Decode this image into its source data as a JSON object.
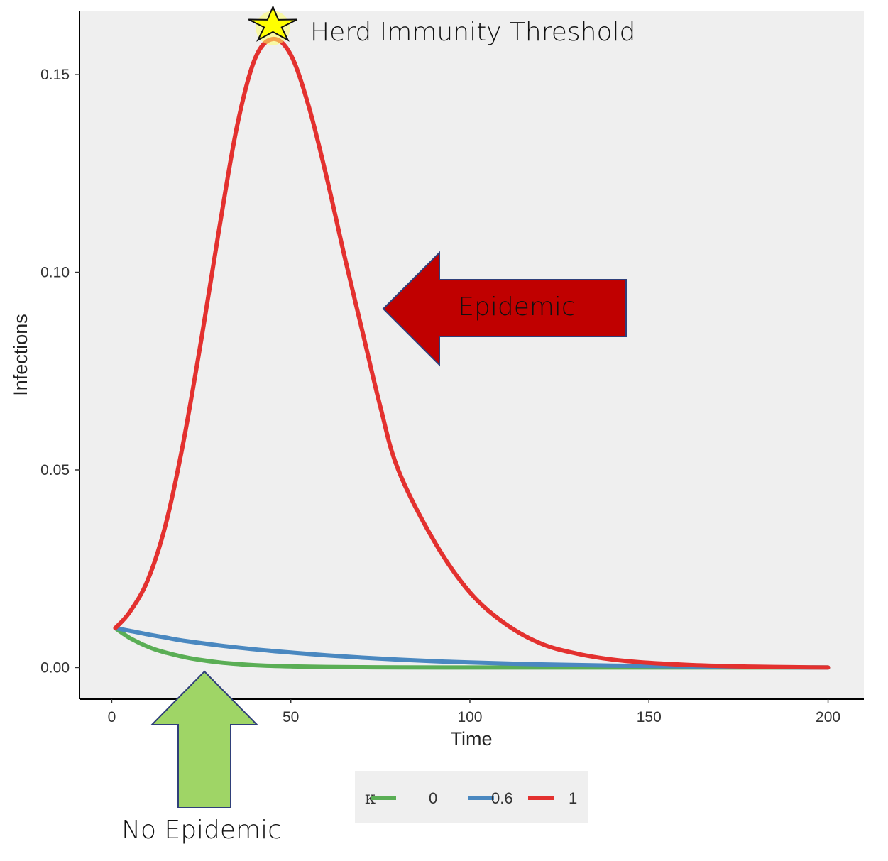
{
  "chart_data": {
    "type": "line",
    "xlabel": "Time",
    "ylabel": "Infections",
    "xlim": [
      -9,
      210
    ],
    "ylim": [
      -0.008,
      0.166
    ],
    "x_ticks": [
      0,
      50,
      100,
      150,
      200
    ],
    "x_tick_labels": [
      "0",
      "50",
      "100",
      "150",
      "200"
    ],
    "y_ticks": [
      0,
      0.05,
      0.1,
      0.15
    ],
    "y_tick_labels": [
      "0.00",
      "0.05",
      "0.10",
      "0.15"
    ],
    "grid": false,
    "legend": {
      "title": "κ",
      "placement": "bottom"
    },
    "series": [
      {
        "name": "0",
        "color": "#5aae55",
        "x": [
          1,
          3,
          5,
          8,
          10,
          12,
          15,
          20,
          25,
          30,
          35,
          40,
          50,
          60,
          70,
          80,
          100,
          120,
          150,
          180,
          200
        ],
        "y": [
          0.01,
          0.0087,
          0.0075,
          0.0061,
          0.0053,
          0.0046,
          0.0038,
          0.0027,
          0.0019,
          0.0013,
          0.0009,
          0.0006,
          0.0003,
          0.00015,
          8e-05,
          4e-05,
          1e-05,
          0.0,
          0.0,
          0.0,
          0.0
        ]
      },
      {
        "name": "0.6",
        "color": "#4a88c0",
        "x": [
          1,
          5,
          10,
          15,
          20,
          30,
          40,
          50,
          60,
          70,
          80,
          90,
          100,
          120,
          140,
          160,
          180,
          200
        ],
        "y": [
          0.01,
          0.0093,
          0.0084,
          0.0076,
          0.0068,
          0.0056,
          0.0046,
          0.0038,
          0.0031,
          0.0025,
          0.002,
          0.0016,
          0.0013,
          0.0008,
          0.0005,
          0.0003,
          0.0001,
          0.0
        ]
      },
      {
        "name": "1",
        "color": "#e3312f",
        "x": [
          1,
          5,
          10,
          15,
          20,
          25,
          30,
          35,
          40,
          45,
          50,
          55,
          60,
          65,
          70,
          75,
          80,
          90,
          100,
          110,
          120,
          130,
          140,
          150,
          160,
          170,
          180,
          190,
          200
        ],
        "y": [
          0.01,
          0.014,
          0.022,
          0.036,
          0.057,
          0.083,
          0.111,
          0.137,
          0.154,
          0.159,
          0.155,
          0.142,
          0.124,
          0.104,
          0.085,
          0.066,
          0.05,
          0.032,
          0.019,
          0.011,
          0.006,
          0.0035,
          0.002,
          0.0012,
          0.0007,
          0.0004,
          0.0002,
          0.0001,
          0.0
        ]
      }
    ],
    "annotations": {
      "herd_immunity": {
        "text": "Herd Immunity Threshold",
        "x": 45,
        "y": 0.1625,
        "star_color": "#ffff00"
      },
      "epidemic": {
        "text": "Epidemic",
        "color": "#c00000"
      },
      "no_epidemic": {
        "text": "No Epidemic",
        "color": "#9fd566"
      }
    }
  }
}
